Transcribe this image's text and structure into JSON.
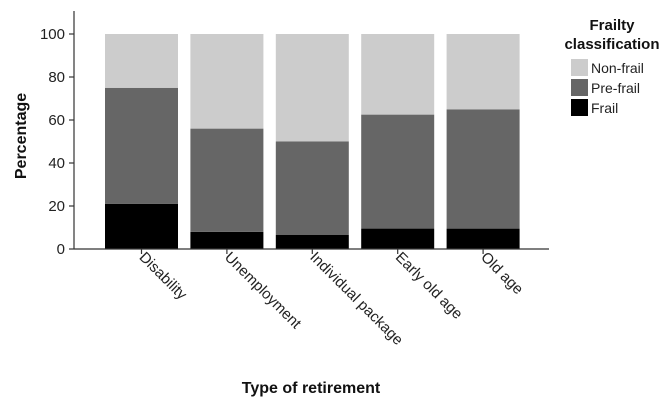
{
  "chart_data": {
    "type": "bar",
    "stacked": true,
    "xlabel": "Type of retirement",
    "ylabel": "Percentage",
    "ylim": [
      0,
      100
    ],
    "yticks": [
      0,
      20,
      40,
      60,
      80,
      100
    ],
    "grid": false,
    "categories": [
      "Disability",
      "Unemployment",
      "Individual package",
      "Early old age",
      "Old age"
    ],
    "series": [
      {
        "name": "Frail",
        "color": "#000000",
        "values": [
          21,
          8,
          6.5,
          9.5,
          9.5
        ]
      },
      {
        "name": "Pre-frail",
        "color": "#666666",
        "values": [
          54,
          48,
          43.5,
          53,
          55.5
        ]
      },
      {
        "name": "Non-frail",
        "color": "#cccccc",
        "values": [
          25,
          44,
          50,
          37.5,
          35
        ]
      }
    ],
    "legend": {
      "title": "Frailty classification",
      "placement": "right",
      "order": [
        "Non-frail",
        "Pre-frail",
        "Frail"
      ]
    }
  }
}
